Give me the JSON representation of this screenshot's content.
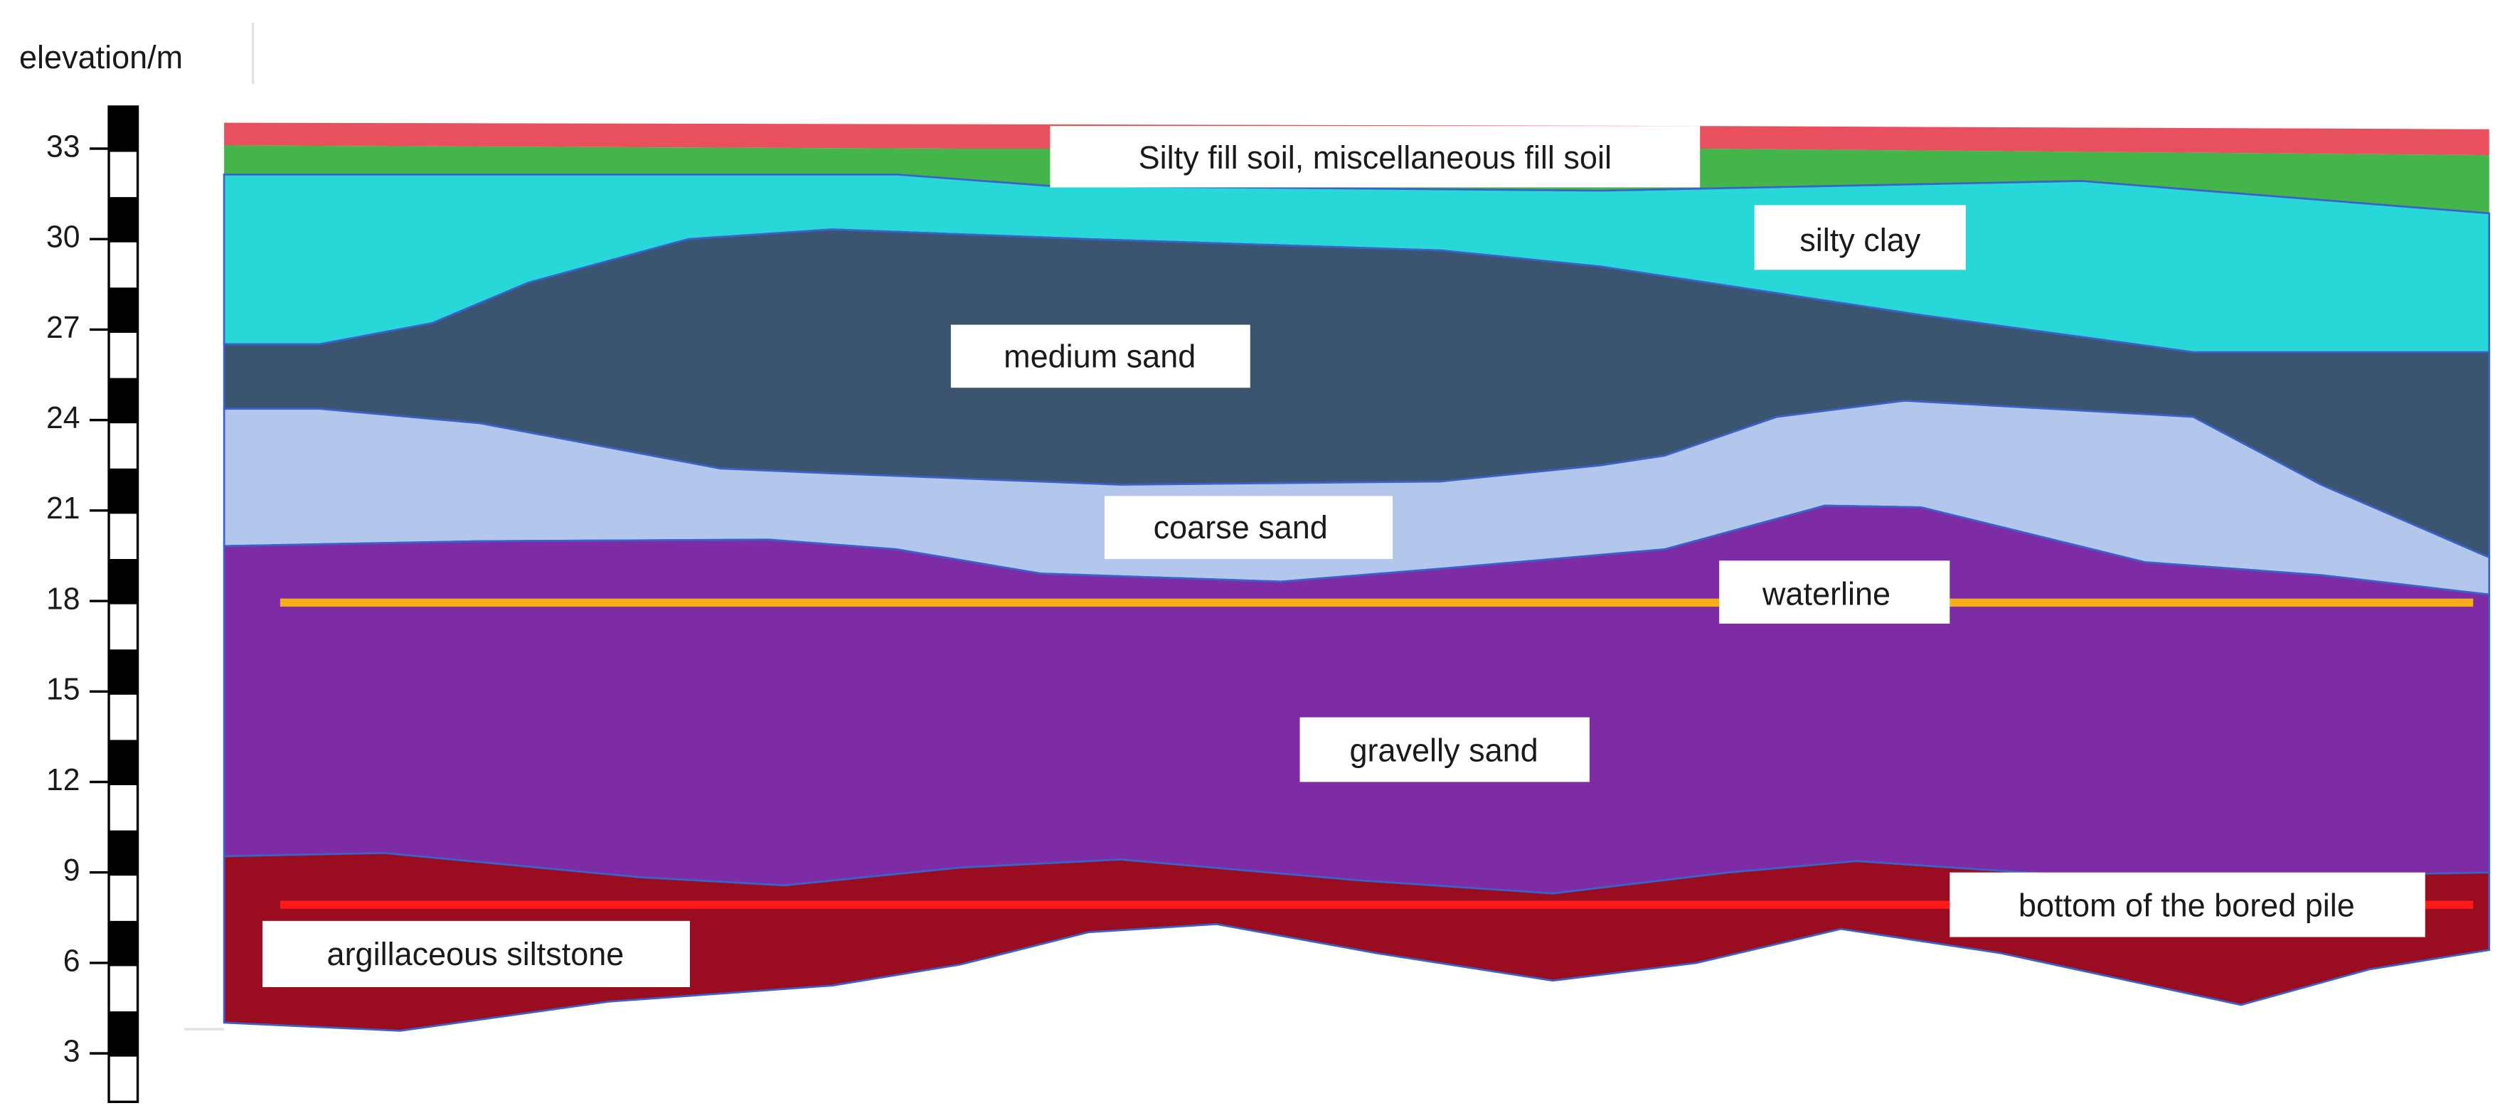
{
  "y_axis": {
    "label": "elevation/m",
    "ticks": [
      3,
      6,
      9,
      12,
      15,
      18,
      21,
      24,
      27,
      30,
      33
    ]
  },
  "labels": {
    "fill_soil": "Silty fill soil, miscellaneous fill soil",
    "silty_clay": "silty clay",
    "medium_sand": "medium sand",
    "coarse_sand": "coarse sand",
    "waterline": "waterline",
    "gravelly_sand": "gravelly sand",
    "bottom_pile": "bottom of the bored pile",
    "siltstone": "argillaceous siltstone"
  }
}
